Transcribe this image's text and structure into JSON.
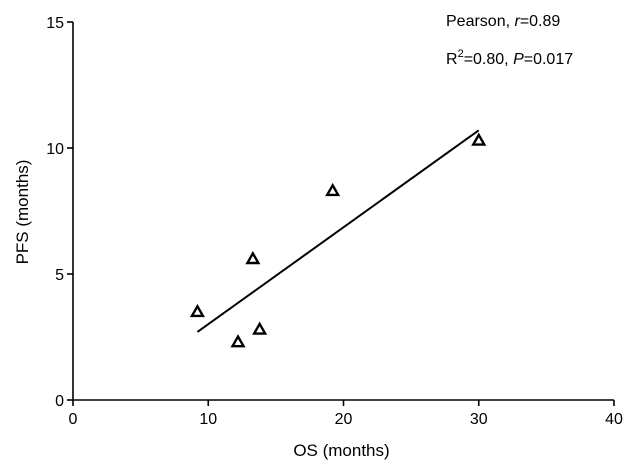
{
  "chart_data": {
    "type": "scatter",
    "xlabel": "OS (months)",
    "ylabel": "PFS (months)",
    "xlim": [
      0,
      40
    ],
    "ylim": [
      0,
      15
    ],
    "xticks": [
      0,
      10,
      20,
      30,
      40
    ],
    "yticks": [
      0,
      5,
      10,
      15
    ],
    "xtick_labels": [
      "0",
      "10",
      "20",
      "30",
      "40"
    ],
    "ytick_labels": [
      "0",
      "5",
      "10",
      "15"
    ],
    "marker": "open-triangle",
    "grid": false,
    "points": [
      {
        "x": 9.2,
        "y": 3.5
      },
      {
        "x": 12.2,
        "y": 2.3
      },
      {
        "x": 13.3,
        "y": 5.6
      },
      {
        "x": 13.8,
        "y": 2.8
      },
      {
        "x": 19.2,
        "y": 8.3
      },
      {
        "x": 30.0,
        "y": 10.3
      }
    ],
    "regression_line": {
      "x": [
        9.2,
        30.0
      ],
      "y": [
        2.7,
        10.7
      ]
    },
    "annotations": {
      "pearson_prefix": "Pearson, ",
      "pearson_r_symbol": "r",
      "pearson_r_value": "=0.89",
      "r2_symbol": "R",
      "r2_superscript": "2",
      "r2_value": "=0.80, ",
      "p_symbol": "P",
      "p_value": "=0.017"
    }
  }
}
